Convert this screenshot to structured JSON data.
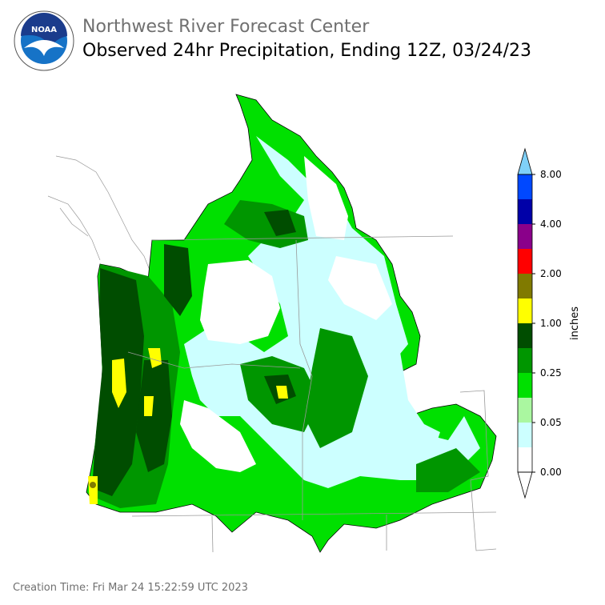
{
  "header": {
    "logo": "NOAA",
    "title": "Northwest River Forecast Center",
    "subtitle": "Observed 24hr Precipitation, Ending 12Z, 03/24/23"
  },
  "legend": {
    "label": "inches",
    "ticks": [
      "0.00",
      "0.05",
      "0.25",
      "1.00",
      "2.00",
      "4.00",
      "8.00"
    ],
    "colors": [
      "#ffffff",
      "#ccffff",
      "#aaf7a0",
      "#00e000",
      "#009600",
      "#004d00",
      "#ffff00",
      "#807a00",
      "#ff0000",
      "#8a008a",
      "#0000a8",
      "#0048ff"
    ],
    "over_color": "#7fd0f8",
    "under_color": "#ffffff"
  },
  "footer": {
    "creation_time": "Creation Time: Fri Mar 24 15:22:59 UTC 2023"
  }
}
